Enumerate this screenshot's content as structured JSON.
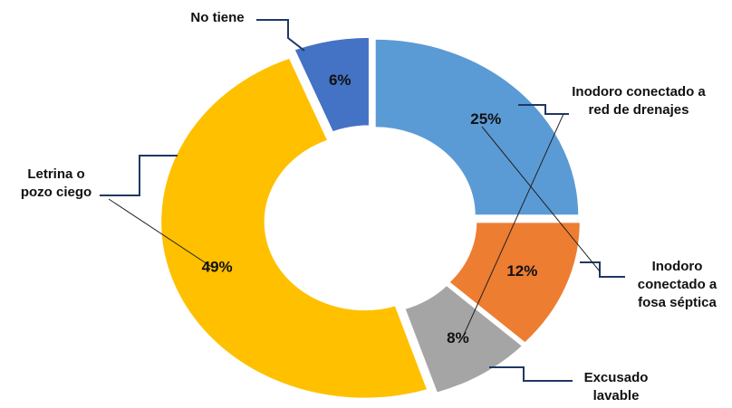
{
  "chart_data": {
    "type": "donut",
    "categories": [
      "Inodoro conectado a red de drenajes",
      "Inodoro conectado a fosa séptica",
      "Excusado lavable",
      "Letrina o pozo ciego",
      "No tiene"
    ],
    "values": [
      25,
      12,
      8,
      49,
      6
    ],
    "value_labels": [
      "25%",
      "12%",
      "8%",
      "49%",
      "6%"
    ],
    "colors": [
      "#5b9bd5",
      "#ed7d31",
      "#a5a5a5",
      "#ffc000",
      "#4472c4"
    ]
  }
}
